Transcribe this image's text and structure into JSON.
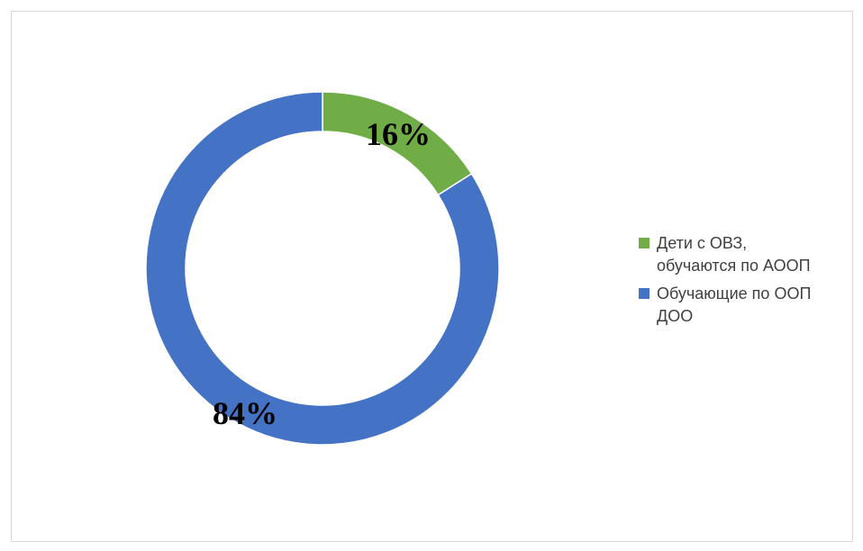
{
  "chart_data": {
    "type": "pie",
    "variant": "doughnut",
    "categories": [
      "Дети с ОВЗ, обучаются по АООП",
      "Обучающие по ООП ДОО"
    ],
    "values": [
      16,
      84
    ],
    "unit": "%",
    "data_labels": [
      "16%",
      "84%"
    ],
    "colors": [
      "#70AD47",
      "#4472C4"
    ],
    "legend_position": "right",
    "legend": [
      {
        "line1": "Дети с ОВЗ,",
        "line2": "обучаются по АООП"
      },
      {
        "line1": "Обучающие по ООП",
        "line2": "ДОО"
      }
    ],
    "title": ""
  }
}
